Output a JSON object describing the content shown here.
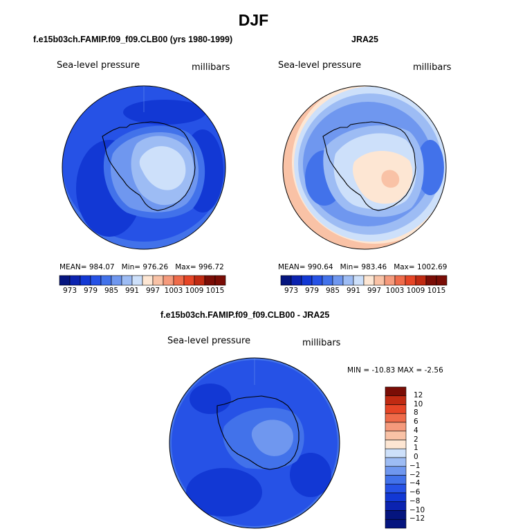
{
  "figure": {
    "title": "DJF",
    "colors": {
      "c1": "#05157f",
      "c2": "#0b23b0",
      "c3": "#1238d4",
      "c4": "#2652e6",
      "c5": "#4272ea",
      "c6": "#6f97ef",
      "c7": "#9dbcf4",
      "c8": "#cde0fa",
      "c9": "#fde6d3",
      "c10": "#f9c2a6",
      "c11": "#f59a7c",
      "c12": "#ef6b4a",
      "c13": "#e64526",
      "c14": "#c02a12",
      "c15": "#7a0d06",
      "coast": "#000000"
    }
  },
  "panels": {
    "model": {
      "title": "f.e15b03ch.FAMIP.f09_f09.CLB00 (yrs 1980-1999)",
      "variable": "Sea-level pressure",
      "units": "millibars",
      "mean_label": "MEAN=",
      "mean": "984.07",
      "min_label": "Min=",
      "min": "976.26",
      "max_label": "Max=",
      "max": "996.72"
    },
    "obs": {
      "title": "JRA25",
      "variable": "Sea-level pressure",
      "units": "millibars",
      "mean_label": "MEAN=",
      "mean": "990.64",
      "min_label": "Min=",
      "min": "983.46",
      "max_label": "Max=",
      "max": "1002.69"
    },
    "diff": {
      "title": "f.e15b03ch.FAMIP.f09_f09.CLB00 - JRA25",
      "variable": "Sea-level pressure",
      "units": "millibars",
      "minmax_label": "MIN = -10.83 MAX =  -2.56"
    }
  },
  "chart_data": [
    {
      "type": "heatmap",
      "projection": "south-polar-stereographic",
      "title": "f.e15b03ch.FAMIP.f09_f09.CLB00 (yrs 1980-1999)",
      "variable": "Sea-level pressure",
      "units": "millibars",
      "mean": 984.07,
      "min": 976.26,
      "max": 996.72,
      "colorbar_levels": [
        973,
        976,
        979,
        982,
        985,
        988,
        991,
        994,
        997,
        1000,
        1003,
        1006,
        1009,
        1012,
        1015
      ],
      "colorbar_tick_labels": [
        "973",
        "979",
        "985",
        "991",
        "997",
        "1003",
        "1009",
        "1015"
      ]
    },
    {
      "type": "heatmap",
      "projection": "south-polar-stereographic",
      "title": "JRA25",
      "variable": "Sea-level pressure",
      "units": "millibars",
      "mean": 990.64,
      "min": 983.46,
      "max": 1002.69,
      "colorbar_levels": [
        973,
        976,
        979,
        982,
        985,
        988,
        991,
        994,
        997,
        1000,
        1003,
        1006,
        1009,
        1012,
        1015
      ],
      "colorbar_tick_labels": [
        "973",
        "979",
        "985",
        "991",
        "997",
        "1003",
        "1009",
        "1015"
      ]
    },
    {
      "type": "heatmap",
      "projection": "south-polar-stereographic",
      "title": "f.e15b03ch.FAMIP.f09_f09.CLB00 - JRA25",
      "variable": "Sea-level pressure",
      "units": "millibars",
      "min": -10.83,
      "max": -2.56,
      "colorbar_levels": [
        -12,
        -10,
        -8,
        -6,
        -4,
        -2,
        -1,
        0,
        1,
        2,
        4,
        6,
        8,
        10,
        12
      ],
      "colorbar_tick_labels": [
        "12",
        "10",
        "8",
        "6",
        "4",
        "2",
        "1",
        "0",
        "−1",
        "−2",
        "−4",
        "−6",
        "−8",
        "−10",
        "−12"
      ]
    }
  ]
}
